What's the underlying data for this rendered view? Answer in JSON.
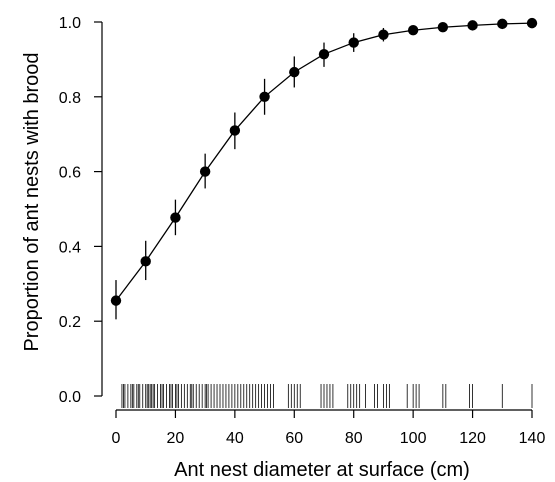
{
  "chart_data": {
    "type": "line",
    "title": "",
    "xlabel": "Ant nest diameter at surface (cm)",
    "ylabel": "Proportion of ant nests with brood",
    "xlim": [
      0,
      140
    ],
    "ylim": [
      0,
      1
    ],
    "x_ticks": [
      0,
      20,
      40,
      60,
      80,
      100,
      120,
      140
    ],
    "y_ticks": [
      0.0,
      0.2,
      0.4,
      0.6,
      0.8,
      1.0
    ],
    "x_tick_labels": [
      "0",
      "20",
      "40",
      "60",
      "80",
      "100",
      "120",
      "140"
    ],
    "y_tick_labels": [
      "0.0",
      "0.2",
      "0.4",
      "0.6",
      "0.8",
      "1.0"
    ],
    "grid": false,
    "legend": "none",
    "series": [
      {
        "x": [
          0,
          10,
          20,
          30,
          40,
          50,
          60,
          70,
          80,
          90,
          100,
          110,
          120,
          130,
          140
        ],
        "values": [
          0.255,
          0.36,
          0.477,
          0.6,
          0.71,
          0.8,
          0.866,
          0.914,
          0.945,
          0.966,
          0.978,
          0.986,
          0.991,
          0.995,
          0.997
        ],
        "lower": [
          0.205,
          0.31,
          0.43,
          0.555,
          0.66,
          0.752,
          0.825,
          0.88,
          0.92,
          0.948,
          0.966,
          0.978,
          0.986,
          0.991,
          0.994
        ],
        "upper": [
          0.31,
          0.415,
          0.525,
          0.648,
          0.758,
          0.848,
          0.908,
          0.945,
          0.97,
          0.984,
          0.99,
          0.994,
          0.996,
          0.998,
          0.999
        ]
      }
    ],
    "rug_x": [
      2,
      2.5,
      3,
      4,
      5,
      5.5,
      6,
      7,
      7.5,
      8,
      9,
      10,
      10.5,
      11,
      11.5,
      12,
      12.5,
      13,
      14,
      15,
      15.5,
      16,
      17,
      18,
      18.5,
      19,
      20,
      20.5,
      21,
      22,
      23,
      24,
      25,
      25.5,
      26,
      27,
      28,
      29,
      30,
      30.5,
      31,
      32,
      33,
      34,
      35,
      36,
      37,
      38,
      39,
      40,
      41,
      42,
      43,
      44,
      45,
      46,
      47,
      48,
      49,
      50,
      51,
      52,
      53,
      58,
      59,
      60,
      61,
      62,
      69,
      70,
      71,
      72,
      73,
      78,
      79,
      80,
      81,
      82,
      84,
      87,
      88,
      90,
      91,
      92,
      98,
      100,
      101,
      102,
      110,
      111,
      119,
      120,
      130,
      140
    ]
  }
}
